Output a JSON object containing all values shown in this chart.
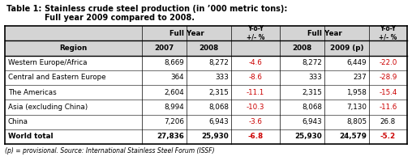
{
  "title_line1": "Stainless crude steel production (in ’000 metric tons):",
  "title_line2": "Full year 2009 compared to 2008.",
  "table_label": "Table 1:",
  "footnote": "(p) = provisional. Source: International Stainless Steel Forum (ISSF)",
  "rows": [
    [
      "Western Europe/Africa",
      "8,669",
      "8,272",
      "-4.6",
      "8,272",
      "6,449",
      "-22.0"
    ],
    [
      "Central and Eastern Europe",
      "364",
      "333",
      "-8.6",
      "333",
      "237",
      "-28.9"
    ],
    [
      "The Americas",
      "2,604",
      "2,315",
      "-11.1",
      "2,315",
      "1,958",
      "-15.4"
    ],
    [
      "Asia (excluding China)",
      "8,994",
      "8,068",
      "-10.3",
      "8,068",
      "7,130",
      "-11.6"
    ],
    [
      "China",
      "7,206",
      "6,943",
      "-3.6",
      "6,943",
      "8,805",
      "26.8"
    ],
    [
      "World total",
      "27,836",
      "25,930",
      "-6.8",
      "25,930",
      "24,579",
      "-5.2"
    ]
  ],
  "red_color": "#cc0000",
  "black_color": "#000000",
  "header_bg": "#d4d4d4",
  "background_color": "#ffffff",
  "title_fontsize": 7.0,
  "header_fontsize": 6.3,
  "data_fontsize": 6.3,
  "footnote_fontsize": 5.5
}
